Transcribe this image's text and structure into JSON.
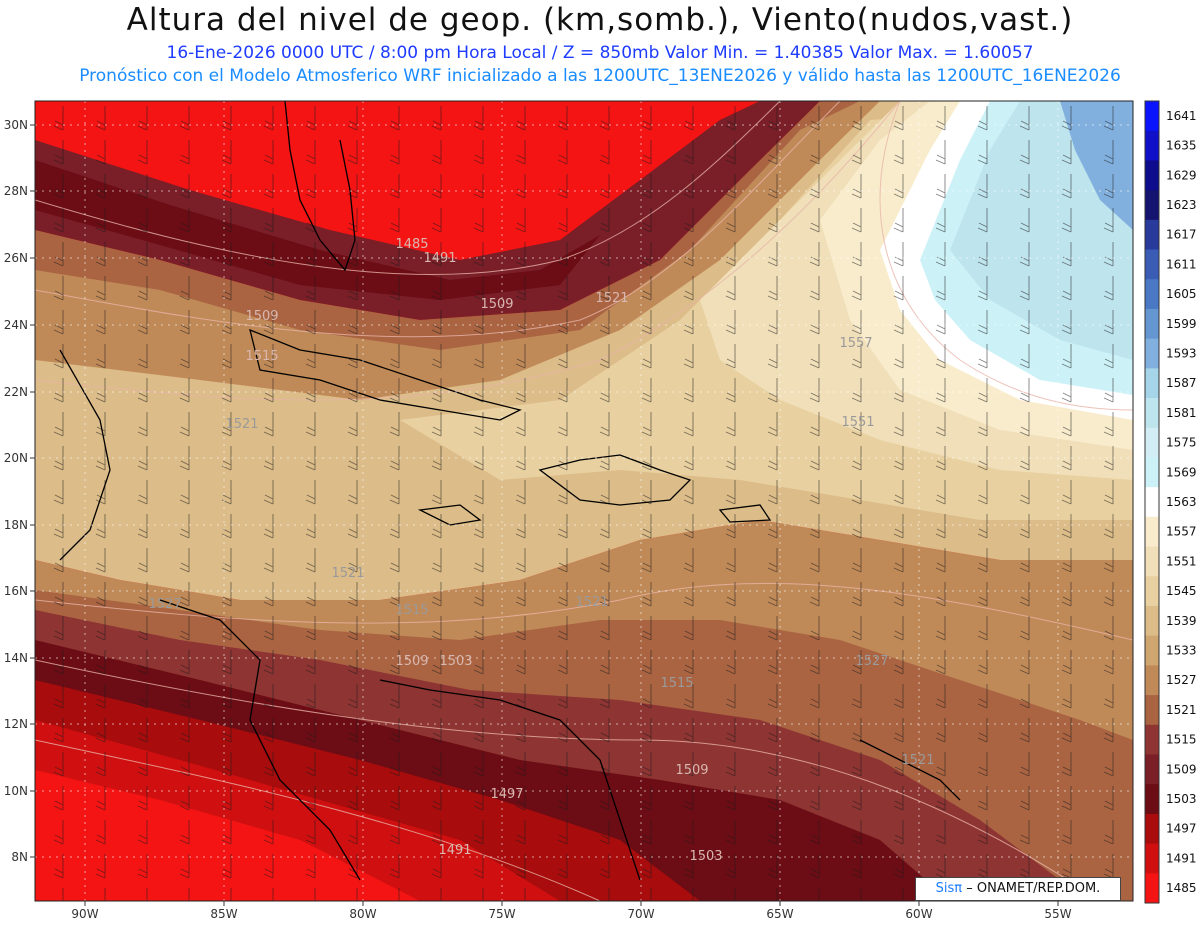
{
  "header": {
    "title": "Altura del nivel de geop. (km,somb.), Viento(nudos,vast.)",
    "subtitle": "16-Ene-2026  0000 UTC / 8:00 pm Hora Local / Z = 850mb    Valor Min. = 1.40385  Valor Max. = 1.60057",
    "info": "Pronóstico con el Modelo Atmosferico WRF inicializado a las 1200UTC_13ENE2026 y válido hasta las  1200UTC_16ENE2026"
  },
  "map": {
    "lat_labels": [
      "30N",
      "28N",
      "26N",
      "24N",
      "22N",
      "20N",
      "18N",
      "16N",
      "14N",
      "12N",
      "10N",
      "8N"
    ],
    "lon_labels": [
      "90W",
      "85W",
      "80W",
      "75W",
      "70W",
      "65W",
      "60W",
      "55W"
    ],
    "contour_labels": [
      {
        "text": "1485"
      },
      {
        "text": "1491"
      },
      {
        "text": "1509"
      },
      {
        "text": "1509"
      },
      {
        "text": "1521"
      },
      {
        "text": "1515"
      },
      {
        "text": "1521"
      },
      {
        "text": "1557"
      },
      {
        "text": "1551"
      },
      {
        "text": "1521"
      },
      {
        "text": "1527"
      },
      {
        "text": "1515"
      },
      {
        "text": "1521"
      },
      {
        "text": "1509"
      },
      {
        "text": "1503"
      },
      {
        "text": "1515"
      },
      {
        "text": "1527"
      },
      {
        "text": "1509"
      },
      {
        "text": "1521"
      },
      {
        "text": "1497"
      },
      {
        "text": "1491"
      },
      {
        "text": "1503"
      }
    ]
  },
  "colorbar": {
    "levels": [
      {
        "label": "1641",
        "color": "#0a14ff"
      },
      {
        "label": "1635",
        "color": "#1010c8"
      },
      {
        "label": "1629",
        "color": "#0c0c8c"
      },
      {
        "label": "1623",
        "color": "#141470"
      },
      {
        "label": "1617",
        "color": "#283a9c"
      },
      {
        "label": "1611",
        "color": "#3a5cb4"
      },
      {
        "label": "1605",
        "color": "#4a78c4"
      },
      {
        "label": "1599",
        "color": "#6496d2"
      },
      {
        "label": "1593",
        "color": "#82b0de"
      },
      {
        "label": "1587",
        "color": "#a6d4e8"
      },
      {
        "label": "1581",
        "color": "#bee4ee"
      },
      {
        "label": "1575",
        "color": "#d2eef4"
      },
      {
        "label": "1569",
        "color": "#ccf2f8"
      },
      {
        "label": "1563",
        "color": "#ffffff"
      },
      {
        "label": "1557",
        "color": "#f8eccc"
      },
      {
        "label": "1551",
        "color": "#f0dfb8"
      },
      {
        "label": "1545",
        "color": "#e8d0a0"
      },
      {
        "label": "1539",
        "color": "#dcbc88"
      },
      {
        "label": "1533",
        "color": "#cfa670"
      },
      {
        "label": "1527",
        "color": "#c08a58"
      },
      {
        "label": "1521",
        "color": "#aa6442"
      },
      {
        "label": "1515",
        "color": "#8e3432"
      },
      {
        "label": "1509",
        "color": "#7a1e28"
      },
      {
        "label": "1503",
        "color": "#6c0c14"
      },
      {
        "label": "1497",
        "color": "#a80c0c"
      },
      {
        "label": "1491",
        "color": "#d01010"
      },
      {
        "label": "1485",
        "color": "#f41414"
      }
    ]
  },
  "credit": {
    "sis": "Sisπ",
    "rest": "– ONAMET/REP.DOM."
  }
}
